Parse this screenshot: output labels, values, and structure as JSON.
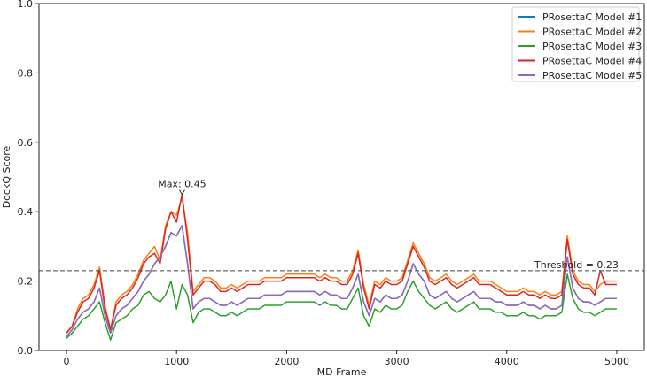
{
  "chart_data": {
    "type": "line",
    "xlabel": "MD Frame",
    "ylabel": "DockQ Score",
    "xlim": [
      -250,
      5250
    ],
    "ylim": [
      0,
      1.0
    ],
    "x_ticks": [
      0,
      1000,
      2000,
      3000,
      4000,
      5000
    ],
    "x_tick_labels": [
      "0",
      "1000",
      "2000",
      "3000",
      "4000",
      "5000"
    ],
    "y_ticks": [
      0,
      0.2,
      0.4,
      0.6,
      0.8,
      1.0
    ],
    "y_tick_labels": [
      "0.0",
      "0.2",
      "0.4",
      "0.6",
      "0.8",
      "1.0"
    ],
    "grid": false,
    "legend_position": "top-right",
    "threshold": {
      "value": 0.23,
      "label": "Threshold = 0.23",
      "color": "#444444"
    },
    "max_annotation": {
      "x": 1050,
      "y": 0.45,
      "label": "Max: 0.45"
    },
    "x": [
      0,
      50,
      100,
      150,
      200,
      250,
      300,
      350,
      400,
      450,
      500,
      550,
      600,
      650,
      700,
      750,
      800,
      850,
      900,
      950,
      1000,
      1050,
      1100,
      1150,
      1200,
      1250,
      1300,
      1350,
      1400,
      1450,
      1500,
      1550,
      1600,
      1650,
      1700,
      1750,
      1800,
      1850,
      1900,
      1950,
      2000,
      2050,
      2100,
      2150,
      2200,
      2250,
      2300,
      2350,
      2400,
      2450,
      2500,
      2550,
      2600,
      2650,
      2700,
      2750,
      2800,
      2850,
      2900,
      2950,
      3000,
      3050,
      3100,
      3150,
      3200,
      3250,
      3300,
      3350,
      3400,
      3450,
      3500,
      3550,
      3600,
      3650,
      3700,
      3750,
      3800,
      3850,
      3900,
      3950,
      4000,
      4050,
      4100,
      4150,
      4200,
      4250,
      4300,
      4350,
      4400,
      4450,
      4500,
      4550,
      4600,
      4650,
      4700,
      4750,
      4800,
      4850,
      4900,
      4950,
      5000
    ],
    "series": [
      {
        "name": "PRosettaC Model #1",
        "color": "#1f77b4",
        "values": [
          0.04,
          0.06,
          0.09,
          0.11,
          0.12,
          0.14,
          0.18,
          0.1,
          0.05,
          0.1,
          0.12,
          0.13,
          0.15,
          0.17,
          0.2,
          0.22,
          0.25,
          0.27,
          0.3,
          0.34,
          0.33,
          0.36,
          0.25,
          0.12,
          0.14,
          0.15,
          0.15,
          0.14,
          0.13,
          0.13,
          0.14,
          0.13,
          0.14,
          0.15,
          0.15,
          0.15,
          0.16,
          0.16,
          0.16,
          0.16,
          0.17,
          0.17,
          0.17,
          0.17,
          0.17,
          0.17,
          0.16,
          0.17,
          0.16,
          0.16,
          0.15,
          0.15,
          0.18,
          0.22,
          0.14,
          0.1,
          0.15,
          0.14,
          0.16,
          0.15,
          0.15,
          0.16,
          0.2,
          0.25,
          0.22,
          0.2,
          0.16,
          0.15,
          0.16,
          0.17,
          0.15,
          0.14,
          0.15,
          0.16,
          0.17,
          0.15,
          0.15,
          0.15,
          0.14,
          0.14,
          0.13,
          0.13,
          0.13,
          0.14,
          0.13,
          0.13,
          0.12,
          0.13,
          0.12,
          0.12,
          0.13,
          0.27,
          0.18,
          0.15,
          0.14,
          0.14,
          0.13,
          0.14,
          0.15,
          0.15,
          0.15
        ]
      },
      {
        "name": "PRosettaC Model #2",
        "color": "#ff7f0e",
        "values": [
          0.05,
          0.07,
          0.12,
          0.15,
          0.16,
          0.19,
          0.24,
          0.13,
          0.06,
          0.14,
          0.16,
          0.17,
          0.19,
          0.22,
          0.26,
          0.28,
          0.3,
          0.26,
          0.36,
          0.4,
          0.39,
          0.44,
          0.34,
          0.17,
          0.19,
          0.21,
          0.21,
          0.2,
          0.18,
          0.18,
          0.19,
          0.18,
          0.19,
          0.2,
          0.2,
          0.2,
          0.21,
          0.21,
          0.21,
          0.21,
          0.22,
          0.22,
          0.22,
          0.22,
          0.22,
          0.22,
          0.21,
          0.22,
          0.21,
          0.21,
          0.2,
          0.2,
          0.23,
          0.29,
          0.19,
          0.13,
          0.2,
          0.19,
          0.21,
          0.2,
          0.2,
          0.21,
          0.26,
          0.31,
          0.28,
          0.25,
          0.21,
          0.2,
          0.21,
          0.22,
          0.2,
          0.19,
          0.2,
          0.21,
          0.22,
          0.2,
          0.2,
          0.2,
          0.19,
          0.18,
          0.17,
          0.17,
          0.17,
          0.18,
          0.17,
          0.17,
          0.16,
          0.17,
          0.16,
          0.16,
          0.17,
          0.33,
          0.23,
          0.2,
          0.19,
          0.19,
          0.17,
          0.19,
          0.2,
          0.2,
          0.2
        ]
      },
      {
        "name": "PRosettaC Model #3",
        "color": "#2ca02c",
        "values": [
          0.035,
          0.05,
          0.07,
          0.09,
          0.1,
          0.12,
          0.14,
          0.08,
          0.03,
          0.08,
          0.09,
          0.1,
          0.12,
          0.13,
          0.16,
          0.17,
          0.15,
          0.14,
          0.16,
          0.2,
          0.12,
          0.19,
          0.16,
          0.08,
          0.11,
          0.12,
          0.12,
          0.11,
          0.1,
          0.1,
          0.11,
          0.1,
          0.11,
          0.12,
          0.12,
          0.12,
          0.13,
          0.13,
          0.13,
          0.13,
          0.14,
          0.14,
          0.14,
          0.14,
          0.14,
          0.14,
          0.13,
          0.14,
          0.13,
          0.13,
          0.12,
          0.12,
          0.15,
          0.18,
          0.1,
          0.07,
          0.12,
          0.11,
          0.13,
          0.12,
          0.12,
          0.13,
          0.17,
          0.2,
          0.17,
          0.15,
          0.13,
          0.12,
          0.13,
          0.14,
          0.12,
          0.11,
          0.12,
          0.13,
          0.14,
          0.12,
          0.12,
          0.12,
          0.11,
          0.11,
          0.1,
          0.1,
          0.1,
          0.11,
          0.1,
          0.1,
          0.09,
          0.1,
          0.1,
          0.1,
          0.11,
          0.22,
          0.15,
          0.12,
          0.11,
          0.11,
          0.1,
          0.11,
          0.12,
          0.12,
          0.12
        ]
      },
      {
        "name": "PRosettaC Model #4",
        "color": "#d62728",
        "values": [
          0.05,
          0.07,
          0.11,
          0.14,
          0.15,
          0.18,
          0.23,
          0.12,
          0.06,
          0.13,
          0.15,
          0.16,
          0.18,
          0.21,
          0.25,
          0.27,
          0.28,
          0.25,
          0.35,
          0.4,
          0.37,
          0.45,
          0.32,
          0.16,
          0.18,
          0.2,
          0.2,
          0.19,
          0.17,
          0.17,
          0.18,
          0.17,
          0.18,
          0.19,
          0.19,
          0.19,
          0.2,
          0.2,
          0.2,
          0.2,
          0.21,
          0.21,
          0.21,
          0.21,
          0.21,
          0.21,
          0.2,
          0.21,
          0.2,
          0.2,
          0.19,
          0.19,
          0.22,
          0.28,
          0.18,
          0.12,
          0.19,
          0.18,
          0.2,
          0.19,
          0.19,
          0.2,
          0.25,
          0.3,
          0.27,
          0.24,
          0.2,
          0.19,
          0.2,
          0.21,
          0.19,
          0.18,
          0.19,
          0.2,
          0.21,
          0.19,
          0.19,
          0.19,
          0.18,
          0.17,
          0.16,
          0.16,
          0.16,
          0.17,
          0.16,
          0.16,
          0.15,
          0.16,
          0.15,
          0.15,
          0.16,
          0.32,
          0.22,
          0.19,
          0.18,
          0.18,
          0.16,
          0.23,
          0.19,
          0.19,
          0.19
        ]
      },
      {
        "name": "PRosettaC Model #5",
        "color": "#9467bd",
        "values": [
          0.04,
          0.06,
          0.09,
          0.11,
          0.12,
          0.14,
          0.18,
          0.1,
          0.05,
          0.1,
          0.12,
          0.13,
          0.15,
          0.17,
          0.2,
          0.22,
          0.25,
          0.27,
          0.3,
          0.34,
          0.33,
          0.36,
          0.25,
          0.12,
          0.14,
          0.15,
          0.15,
          0.14,
          0.13,
          0.13,
          0.14,
          0.13,
          0.14,
          0.15,
          0.15,
          0.15,
          0.16,
          0.16,
          0.16,
          0.16,
          0.17,
          0.17,
          0.17,
          0.17,
          0.17,
          0.17,
          0.16,
          0.17,
          0.16,
          0.16,
          0.15,
          0.15,
          0.18,
          0.22,
          0.14,
          0.1,
          0.15,
          0.14,
          0.16,
          0.15,
          0.15,
          0.16,
          0.2,
          0.25,
          0.22,
          0.2,
          0.16,
          0.15,
          0.16,
          0.17,
          0.15,
          0.14,
          0.15,
          0.16,
          0.17,
          0.15,
          0.15,
          0.15,
          0.14,
          0.14,
          0.13,
          0.13,
          0.13,
          0.14,
          0.13,
          0.13,
          0.12,
          0.13,
          0.12,
          0.12,
          0.13,
          0.27,
          0.18,
          0.15,
          0.14,
          0.14,
          0.13,
          0.14,
          0.15,
          0.15,
          0.15
        ]
      }
    ]
  }
}
